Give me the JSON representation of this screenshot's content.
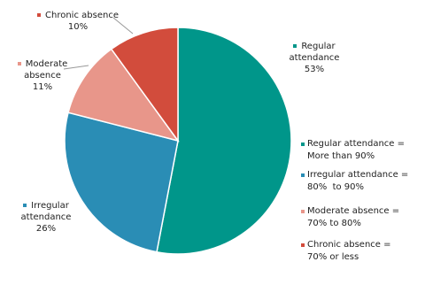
{
  "chart_data": {
    "type": "pie",
    "categories": [
      "Regular attendance",
      "Irregular attendance",
      "Moderate absence",
      "Chronic absence"
    ],
    "values": [
      53,
      26,
      11,
      10
    ],
    "value_labels": [
      "53%",
      "26%",
      "11%",
      "10%"
    ],
    "colors": [
      "#00968a",
      "#2a8db5",
      "#e8968a",
      "#d24c3c"
    ],
    "legend_labels": [
      [
        "Regular attendance =",
        "More than 90%"
      ],
      [
        "Irregular attendance =",
        "80%  to 90%"
      ],
      [
        "Moderate absence =",
        "70% to 80%"
      ],
      [
        "Chronic absence =",
        "70% or less"
      ]
    ]
  }
}
